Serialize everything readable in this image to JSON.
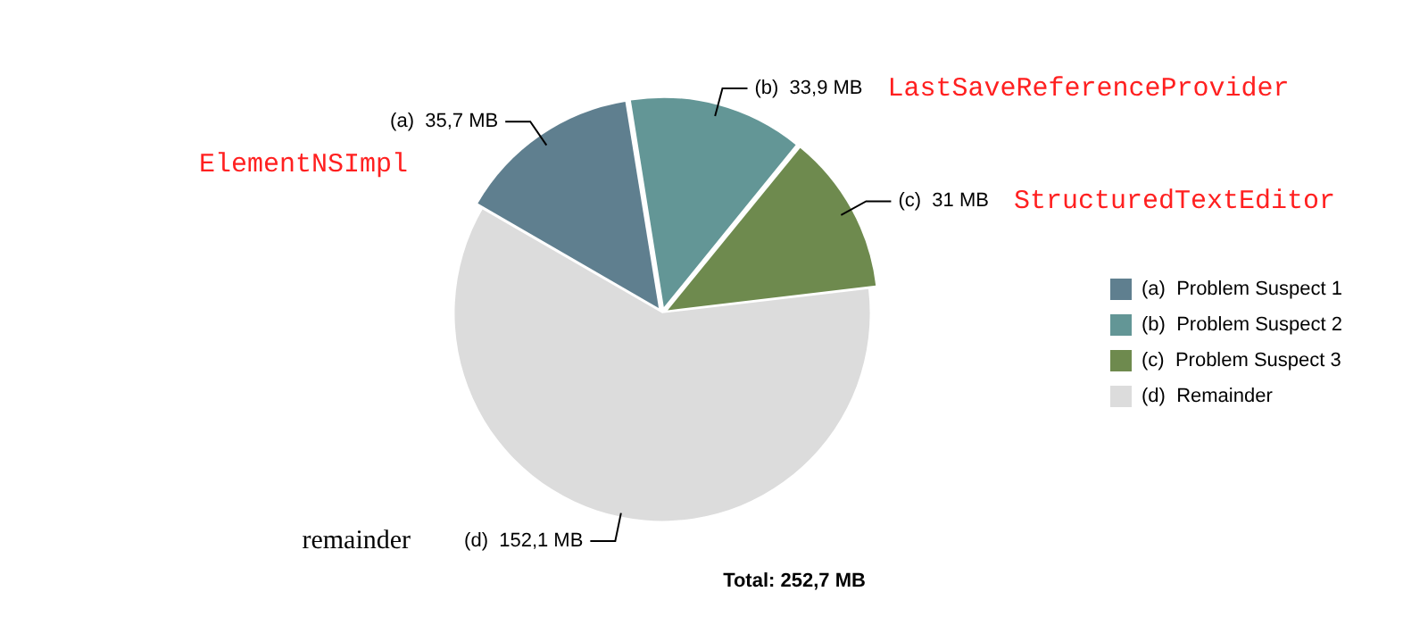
{
  "chart_data": {
    "type": "pie",
    "title": "Total: 252,7 MB",
    "categories": [
      "(a)  Problem Suspect 1",
      "(b)  Problem Suspect 2",
      "(c)  Problem Suspect 3",
      "(d)  Remainder"
    ],
    "values": [
      35.7,
      33.9,
      31,
      152.1
    ],
    "colors": [
      "#5f7f8f",
      "#639696",
      "#6e8a4e",
      "#dcdcdc"
    ],
    "value_labels": [
      "(a)  35,7 MB",
      "(b)  33,9 MB",
      "(c)  31 MB",
      "(d)  152,1 MB"
    ],
    "annotations": [
      "ElementNSImpl",
      "LastSaveReferenceProvider",
      "StructuredTextEditor",
      "remainder"
    ],
    "legend": "right"
  }
}
